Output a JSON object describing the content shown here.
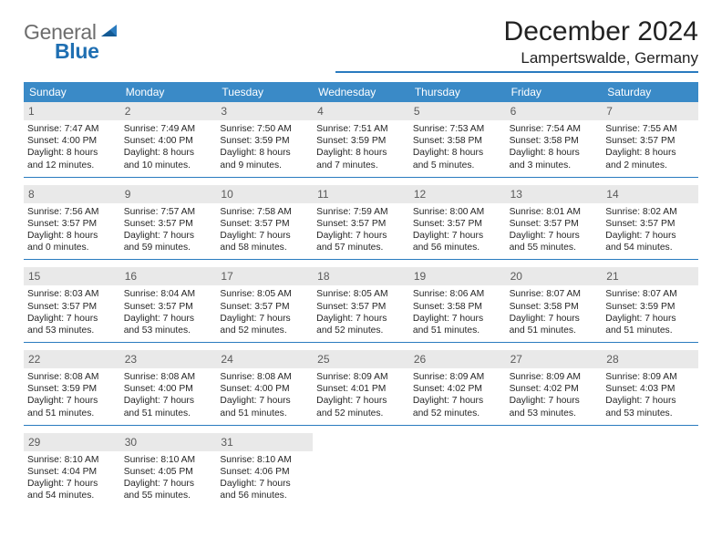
{
  "brand": {
    "text_gray": "General",
    "text_blue": "Blue"
  },
  "colors": {
    "header_bg": "#3a8ac7",
    "rule": "#2a7bbf",
    "daynum_bg": "#e9e9e9",
    "text": "#262626"
  },
  "title": "December 2024",
  "location": "Lampertswalde, Germany",
  "weekday_labels": [
    "Sunday",
    "Monday",
    "Tuesday",
    "Wednesday",
    "Thursday",
    "Friday",
    "Saturday"
  ],
  "weeks": [
    [
      {
        "day": "1",
        "sunrise": "Sunrise: 7:47 AM",
        "sunset": "Sunset: 4:00 PM",
        "daylight1": "Daylight: 8 hours",
        "daylight2": "and 12 minutes."
      },
      {
        "day": "2",
        "sunrise": "Sunrise: 7:49 AM",
        "sunset": "Sunset: 4:00 PM",
        "daylight1": "Daylight: 8 hours",
        "daylight2": "and 10 minutes."
      },
      {
        "day": "3",
        "sunrise": "Sunrise: 7:50 AM",
        "sunset": "Sunset: 3:59 PM",
        "daylight1": "Daylight: 8 hours",
        "daylight2": "and 9 minutes."
      },
      {
        "day": "4",
        "sunrise": "Sunrise: 7:51 AM",
        "sunset": "Sunset: 3:59 PM",
        "daylight1": "Daylight: 8 hours",
        "daylight2": "and 7 minutes."
      },
      {
        "day": "5",
        "sunrise": "Sunrise: 7:53 AM",
        "sunset": "Sunset: 3:58 PM",
        "daylight1": "Daylight: 8 hours",
        "daylight2": "and 5 minutes."
      },
      {
        "day": "6",
        "sunrise": "Sunrise: 7:54 AM",
        "sunset": "Sunset: 3:58 PM",
        "daylight1": "Daylight: 8 hours",
        "daylight2": "and 3 minutes."
      },
      {
        "day": "7",
        "sunrise": "Sunrise: 7:55 AM",
        "sunset": "Sunset: 3:57 PM",
        "daylight1": "Daylight: 8 hours",
        "daylight2": "and 2 minutes."
      }
    ],
    [
      {
        "day": "8",
        "sunrise": "Sunrise: 7:56 AM",
        "sunset": "Sunset: 3:57 PM",
        "daylight1": "Daylight: 8 hours",
        "daylight2": "and 0 minutes."
      },
      {
        "day": "9",
        "sunrise": "Sunrise: 7:57 AM",
        "sunset": "Sunset: 3:57 PM",
        "daylight1": "Daylight: 7 hours",
        "daylight2": "and 59 minutes."
      },
      {
        "day": "10",
        "sunrise": "Sunrise: 7:58 AM",
        "sunset": "Sunset: 3:57 PM",
        "daylight1": "Daylight: 7 hours",
        "daylight2": "and 58 minutes."
      },
      {
        "day": "11",
        "sunrise": "Sunrise: 7:59 AM",
        "sunset": "Sunset: 3:57 PM",
        "daylight1": "Daylight: 7 hours",
        "daylight2": "and 57 minutes."
      },
      {
        "day": "12",
        "sunrise": "Sunrise: 8:00 AM",
        "sunset": "Sunset: 3:57 PM",
        "daylight1": "Daylight: 7 hours",
        "daylight2": "and 56 minutes."
      },
      {
        "day": "13",
        "sunrise": "Sunrise: 8:01 AM",
        "sunset": "Sunset: 3:57 PM",
        "daylight1": "Daylight: 7 hours",
        "daylight2": "and 55 minutes."
      },
      {
        "day": "14",
        "sunrise": "Sunrise: 8:02 AM",
        "sunset": "Sunset: 3:57 PM",
        "daylight1": "Daylight: 7 hours",
        "daylight2": "and 54 minutes."
      }
    ],
    [
      {
        "day": "15",
        "sunrise": "Sunrise: 8:03 AM",
        "sunset": "Sunset: 3:57 PM",
        "daylight1": "Daylight: 7 hours",
        "daylight2": "and 53 minutes."
      },
      {
        "day": "16",
        "sunrise": "Sunrise: 8:04 AM",
        "sunset": "Sunset: 3:57 PM",
        "daylight1": "Daylight: 7 hours",
        "daylight2": "and 53 minutes."
      },
      {
        "day": "17",
        "sunrise": "Sunrise: 8:05 AM",
        "sunset": "Sunset: 3:57 PM",
        "daylight1": "Daylight: 7 hours",
        "daylight2": "and 52 minutes."
      },
      {
        "day": "18",
        "sunrise": "Sunrise: 8:05 AM",
        "sunset": "Sunset: 3:57 PM",
        "daylight1": "Daylight: 7 hours",
        "daylight2": "and 52 minutes."
      },
      {
        "day": "19",
        "sunrise": "Sunrise: 8:06 AM",
        "sunset": "Sunset: 3:58 PM",
        "daylight1": "Daylight: 7 hours",
        "daylight2": "and 51 minutes."
      },
      {
        "day": "20",
        "sunrise": "Sunrise: 8:07 AM",
        "sunset": "Sunset: 3:58 PM",
        "daylight1": "Daylight: 7 hours",
        "daylight2": "and 51 minutes."
      },
      {
        "day": "21",
        "sunrise": "Sunrise: 8:07 AM",
        "sunset": "Sunset: 3:59 PM",
        "daylight1": "Daylight: 7 hours",
        "daylight2": "and 51 minutes."
      }
    ],
    [
      {
        "day": "22",
        "sunrise": "Sunrise: 8:08 AM",
        "sunset": "Sunset: 3:59 PM",
        "daylight1": "Daylight: 7 hours",
        "daylight2": "and 51 minutes."
      },
      {
        "day": "23",
        "sunrise": "Sunrise: 8:08 AM",
        "sunset": "Sunset: 4:00 PM",
        "daylight1": "Daylight: 7 hours",
        "daylight2": "and 51 minutes."
      },
      {
        "day": "24",
        "sunrise": "Sunrise: 8:08 AM",
        "sunset": "Sunset: 4:00 PM",
        "daylight1": "Daylight: 7 hours",
        "daylight2": "and 51 minutes."
      },
      {
        "day": "25",
        "sunrise": "Sunrise: 8:09 AM",
        "sunset": "Sunset: 4:01 PM",
        "daylight1": "Daylight: 7 hours",
        "daylight2": "and 52 minutes."
      },
      {
        "day": "26",
        "sunrise": "Sunrise: 8:09 AM",
        "sunset": "Sunset: 4:02 PM",
        "daylight1": "Daylight: 7 hours",
        "daylight2": "and 52 minutes."
      },
      {
        "day": "27",
        "sunrise": "Sunrise: 8:09 AM",
        "sunset": "Sunset: 4:02 PM",
        "daylight1": "Daylight: 7 hours",
        "daylight2": "and 53 minutes."
      },
      {
        "day": "28",
        "sunrise": "Sunrise: 8:09 AM",
        "sunset": "Sunset: 4:03 PM",
        "daylight1": "Daylight: 7 hours",
        "daylight2": "and 53 minutes."
      }
    ],
    [
      {
        "day": "29",
        "sunrise": "Sunrise: 8:10 AM",
        "sunset": "Sunset: 4:04 PM",
        "daylight1": "Daylight: 7 hours",
        "daylight2": "and 54 minutes."
      },
      {
        "day": "30",
        "sunrise": "Sunrise: 8:10 AM",
        "sunset": "Sunset: 4:05 PM",
        "daylight1": "Daylight: 7 hours",
        "daylight2": "and 55 minutes."
      },
      {
        "day": "31",
        "sunrise": "Sunrise: 8:10 AM",
        "sunset": "Sunset: 4:06 PM",
        "daylight1": "Daylight: 7 hours",
        "daylight2": "and 56 minutes."
      },
      {
        "empty": true
      },
      {
        "empty": true
      },
      {
        "empty": true
      },
      {
        "empty": true
      }
    ]
  ]
}
